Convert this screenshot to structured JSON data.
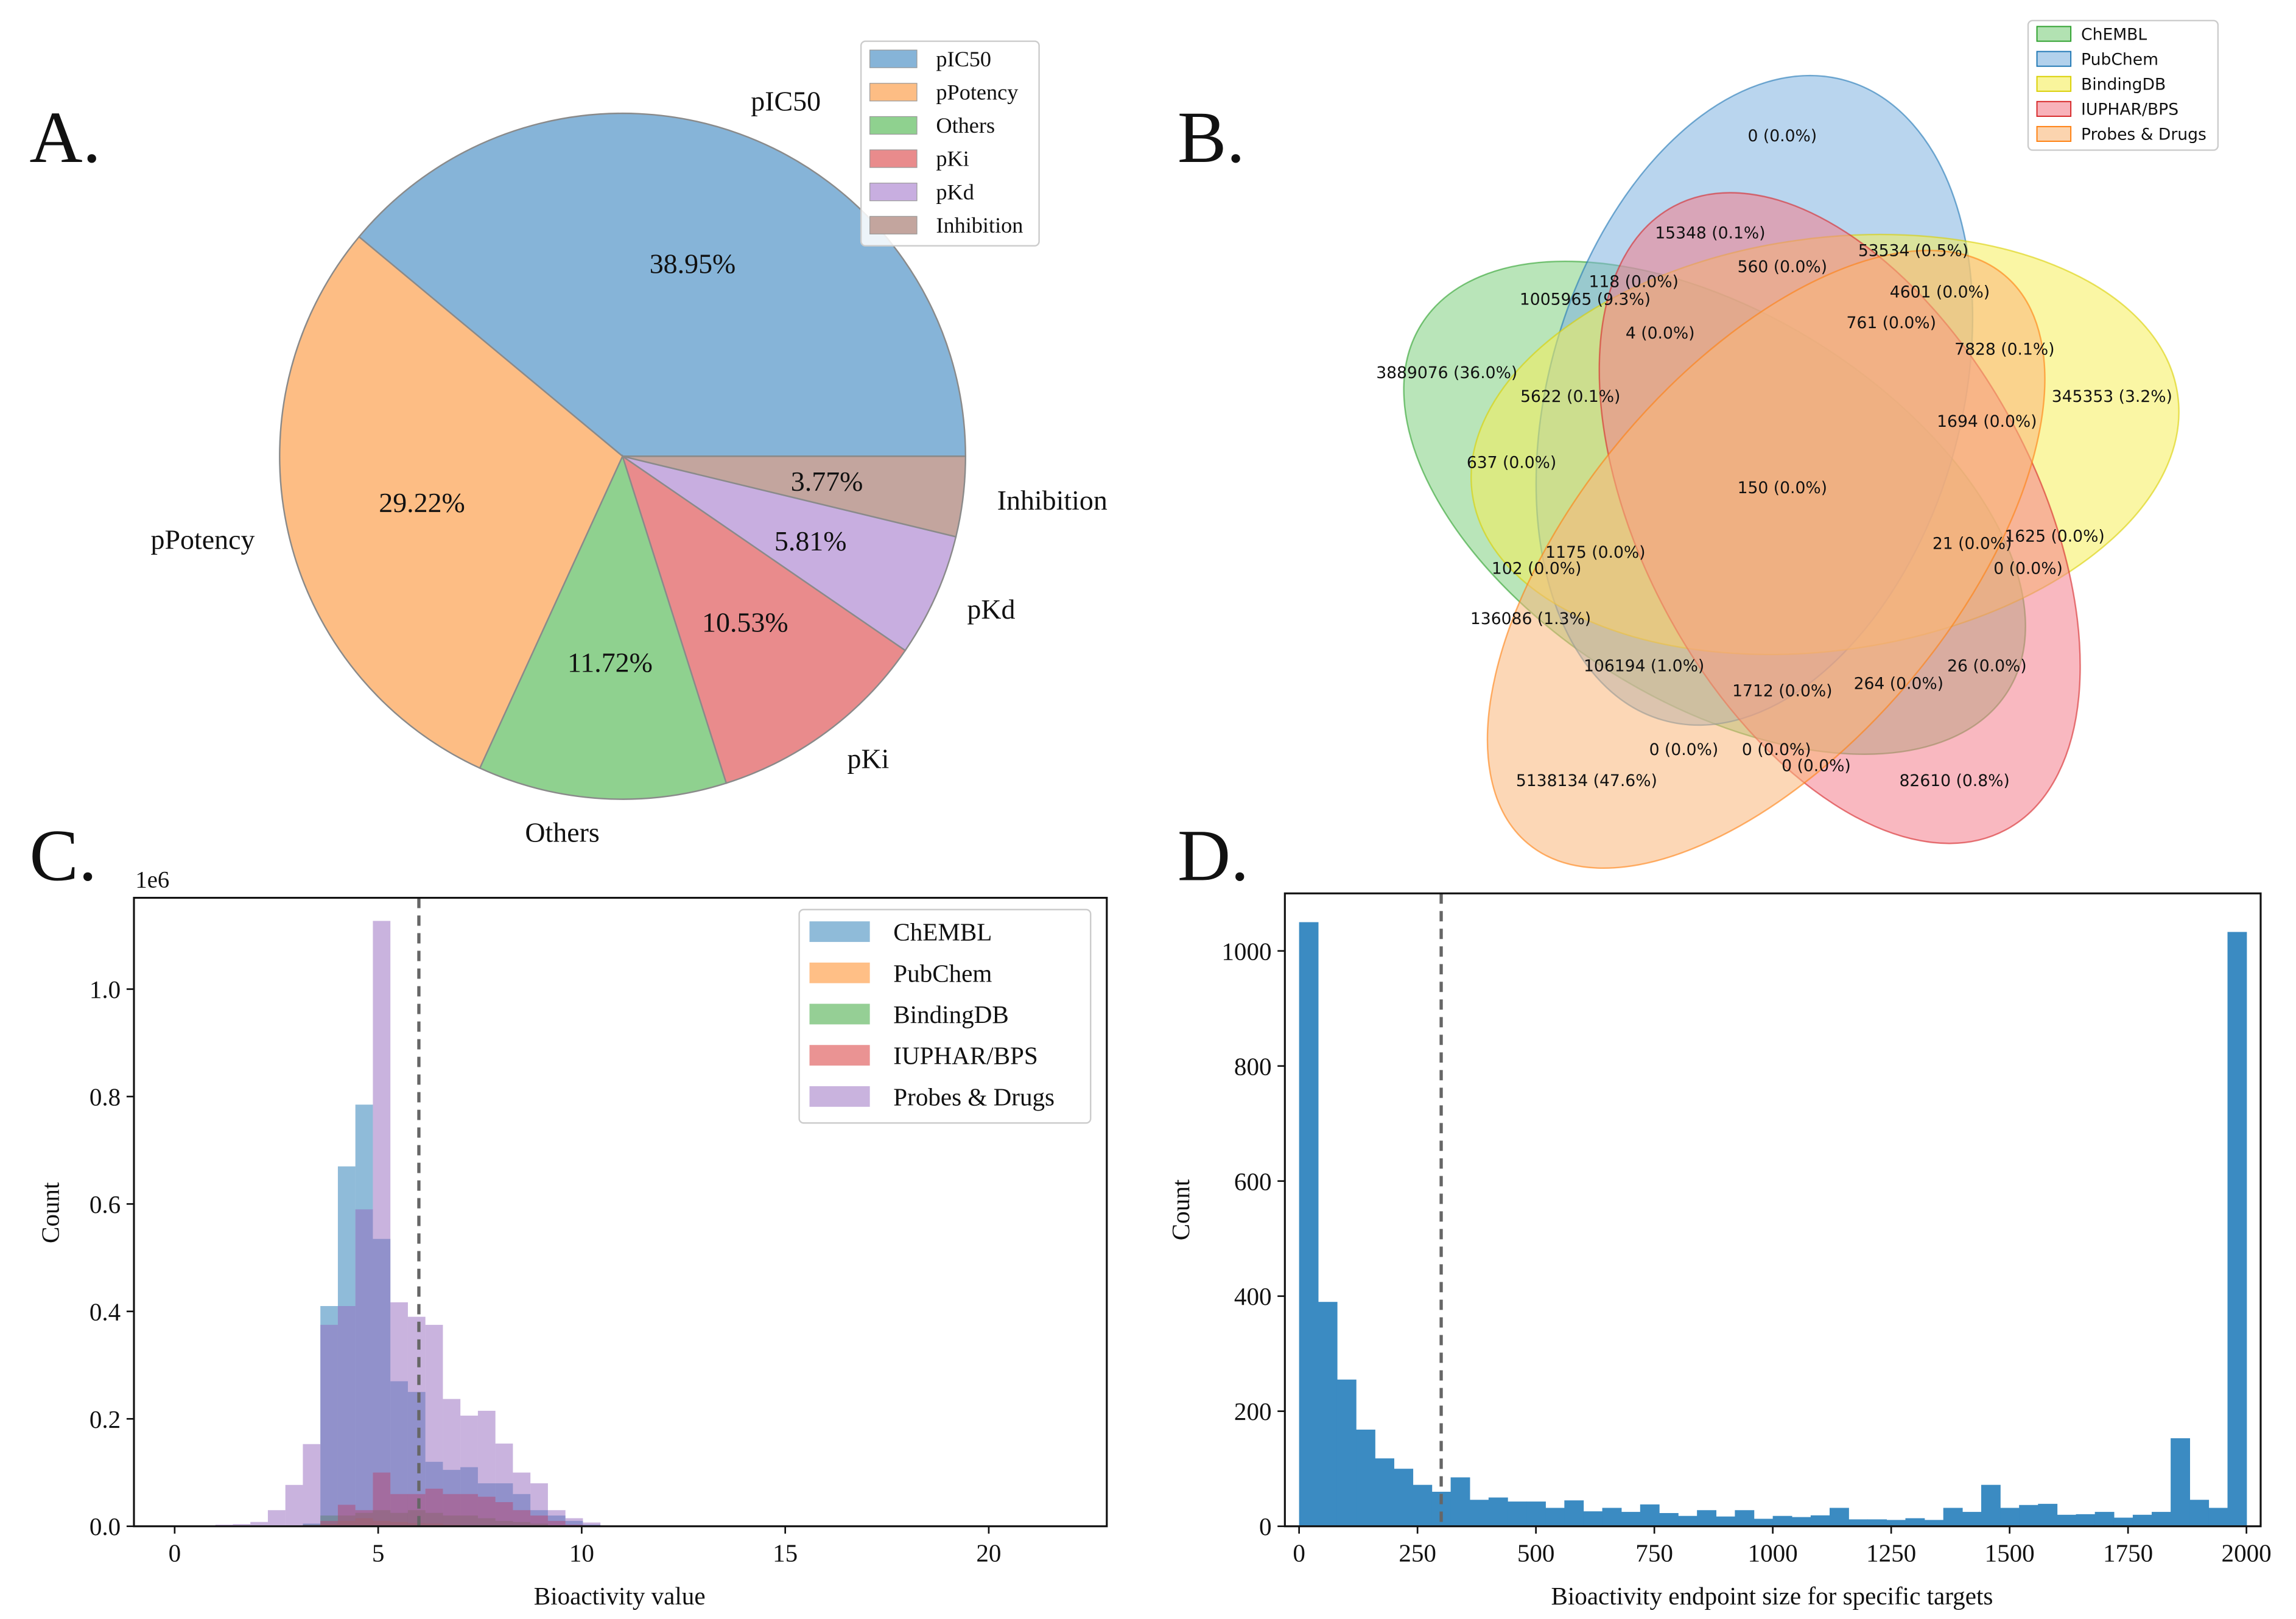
{
  "panels": {
    "a": "A.",
    "b": "B.",
    "c": "C.",
    "d": "D."
  },
  "chart_data": [
    {
      "type": "pie",
      "labels": [
        "pIC50",
        "pPotency",
        "Others",
        "pKi",
        "pKd",
        "Inhibition"
      ],
      "values": [
        38.95,
        29.22,
        11.72,
        10.53,
        5.81,
        3.77
      ],
      "pct_labels": [
        "38.95%",
        "29.22%",
        "11.72%",
        "10.53%",
        "5.81%",
        "3.77%"
      ],
      "colors": [
        "#86b4d8",
        "#fdbd84",
        "#8fd18f",
        "#e98b8c",
        "#c8aee0",
        "#c3a59e"
      ],
      "start_angle_deg": 0,
      "direction": "counterclockwise",
      "legend": [
        "pIC50",
        "pPotency",
        "Others",
        "pKi",
        "pKd",
        "Inhibition"
      ],
      "legend_position": "top-right"
    },
    {
      "type": "venn",
      "sets": [
        "ChEMBL",
        "PubChem",
        "BindingDB",
        "IUPHAR/BPS",
        "Probes & Drugs"
      ],
      "colors": [
        "#7fcf7f",
        "#7fb2e0",
        "#f5ef5a",
        "#f47e8c",
        "#f9b77a"
      ],
      "region_labels": [
        "0 (0.0%)",
        "15348 (0.1%)",
        "53534 (0.5%)",
        "560 (0.0%)",
        "118 (0.0%)",
        "4601 (0.0%)",
        "1005965 (9.3%)",
        "761 (0.0%)",
        "4 (0.0%)",
        "7828 (0.1%)",
        "3889076 (36.0%)",
        "5622 (0.1%)",
        "345353 (3.2%)",
        "1694 (0.0%)",
        "637 (0.0%)",
        "150 (0.0%)",
        "1625 (0.0%)",
        "21 (0.0%)",
        "1175 (0.0%)",
        "102 (0.0%)",
        "0 (0.0%)",
        "136086 (1.3%)",
        "26 (0.0%)",
        "106194 (1.0%)",
        "1712 (0.0%)",
        "264 (0.0%)",
        "0 (0.0%)",
        "0 (0.0%)",
        "0 (0.0%)",
        "5138134 (47.6%)",
        "82610 (0.8%)"
      ],
      "legend_position": "top-right"
    },
    {
      "type": "histogram",
      "xlabel": "Bioactivity value",
      "ylabel": "Count",
      "y_scale_label": "1e6",
      "xlim": [
        -1,
        22.9
      ],
      "ylim": [
        0,
        1.17
      ],
      "y_unit": 1000000,
      "xticks": [
        "0",
        "5",
        "10",
        "15",
        "20"
      ],
      "yticks": [
        "0.0",
        "0.2",
        "0.4",
        "0.6",
        "0.8",
        "1.0"
      ],
      "bin_start": 1.0,
      "bin_width": 0.43,
      "threshold": 6,
      "series": [
        {
          "name": "ChEMBL",
          "color": "#1f77b4",
          "values": [
            0,
            0,
            0,
            0,
            0,
            0.005,
            0.41,
            0.67,
            0.785,
            0.535,
            0.27,
            0.25,
            0.12,
            0.105,
            0.11,
            0.08,
            0.08,
            0.06,
            0.03,
            0.02,
            0.01,
            0.003,
            0
          ]
        },
        {
          "name": "PubChem",
          "color": "#ff7f0e",
          "values": [
            0,
            0,
            0,
            0,
            0,
            0,
            0.004,
            0.01,
            0.015,
            0.01,
            0.008,
            0.006,
            0.005,
            0.003,
            0.002,
            0,
            0,
            0,
            0,
            0,
            0,
            0,
            0
          ]
        },
        {
          "name": "BindingDB",
          "color": "#2ca02c",
          "values": [
            0,
            0,
            0,
            0,
            0,
            0.003,
            0.02,
            0.02,
            0.025,
            0.03,
            0.025,
            0.03,
            0.025,
            0.02,
            0.02,
            0.015,
            0.01,
            0.008,
            0.005,
            0.002,
            0,
            0,
            0
          ]
        },
        {
          "name": "IUPHAR/BPS",
          "color": "#d62728",
          "values": [
            0,
            0,
            0,
            0,
            0,
            0.002,
            0.01,
            0.04,
            0.03,
            0.1,
            0.06,
            0.06,
            0.07,
            0.06,
            0.06,
            0.055,
            0.045,
            0.03,
            0.02,
            0.01,
            0.003,
            0,
            0
          ]
        },
        {
          "name": "Probes & Drugs",
          "color": "#9467bd",
          "values": [
            0.003,
            0.004,
            0.008,
            0.03,
            0.077,
            0.153,
            0.375,
            0.41,
            0.59,
            1.127,
            0.417,
            0.39,
            0.375,
            0.237,
            0.206,
            0.215,
            0.154,
            0.1,
            0.08,
            0.03,
            0.015,
            0.007,
            0
          ]
        }
      ],
      "legend": [
        "ChEMBL",
        "PubChem",
        "BindingDB",
        "IUPHAR/BPS",
        "Probes & Drugs"
      ],
      "legend_position": "top-right"
    },
    {
      "type": "histogram",
      "xlabel": "Bioactivity endpoint size for specific targets",
      "ylabel": "Count",
      "xlim": [
        -30,
        2030
      ],
      "ylim": [
        0,
        1100
      ],
      "xticks": [
        "0",
        "250",
        "500",
        "750",
        "1000",
        "1250",
        "1500",
        "1750",
        "2000"
      ],
      "yticks": [
        "0",
        "200",
        "400",
        "600",
        "800",
        "1000"
      ],
      "bin_start": 0,
      "bin_width": 40,
      "threshold": 300,
      "color": "#3b8bc2",
      "values": [
        1050,
        390,
        255,
        168,
        118,
        100,
        72,
        60,
        85,
        46,
        50,
        43,
        43,
        32,
        45,
        26,
        32,
        25,
        38,
        23,
        18,
        28,
        17,
        28,
        13,
        18,
        16,
        19,
        32,
        12,
        12,
        11,
        14,
        11,
        32,
        25,
        72,
        32,
        37,
        39,
        20,
        21,
        25,
        15,
        20,
        25,
        153,
        46,
        32,
        1033
      ]
    }
  ]
}
